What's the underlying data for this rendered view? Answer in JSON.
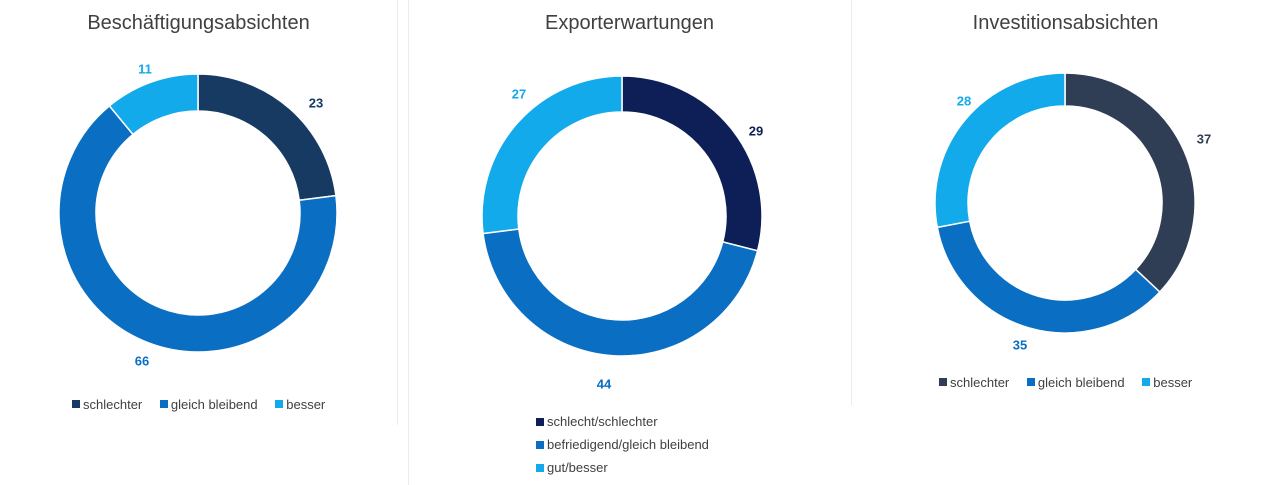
{
  "colors": {
    "navy": "#0e1f57",
    "dark_slate": "#173a63",
    "slate_grey": "#303e55",
    "mid_blue": "#0a6fc2",
    "light_blue": "#12aaea",
    "title": "#404040"
  },
  "chart_data": [
    {
      "type": "pie",
      "title": "Beschäftigungsabsichten",
      "categories": [
        "schlechter",
        "gleich bleibend",
        "besser"
      ],
      "values": [
        23,
        66,
        11
      ],
      "colors": [
        "#173a63",
        "#0a6fc2",
        "#12aaea"
      ],
      "legend_labels": [
        "schlechter",
        "gleich bleibend",
        "besser"
      ],
      "legend_position": "bottom",
      "donut": true
    },
    {
      "type": "pie",
      "title": "Exporterwartungen",
      "categories": [
        "schlecht/schlechter",
        "befriedigend/gleich bleibend",
        "gut/besser"
      ],
      "values": [
        29,
        44,
        27
      ],
      "colors": [
        "#0e1f57",
        "#0a6fc2",
        "#12aaea"
      ],
      "legend_labels": [
        "schlecht/schlechter",
        "befriedigend/gleich bleibend",
        "gut/besser"
      ],
      "legend_position": "bottom",
      "donut": true
    },
    {
      "type": "pie",
      "title": "Investitionsabsichten",
      "categories": [
        "schlechter",
        "gleich bleibend",
        "besser"
      ],
      "values": [
        37,
        35,
        28
      ],
      "colors": [
        "#303e55",
        "#0a6fc2",
        "#12aaea"
      ],
      "legend_labels": [
        "schlechter",
        "gleich bleibend",
        "besser"
      ],
      "legend_position": "bottom",
      "donut": true
    }
  ]
}
